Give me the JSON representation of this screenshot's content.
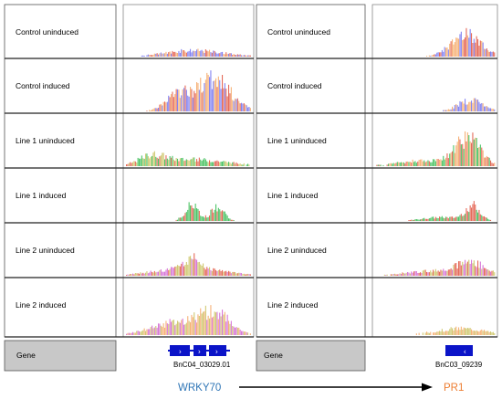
{
  "columns": [
    {
      "tracks": [
        {
          "label": "Control uninduced"
        },
        {
          "label": "Control induced"
        },
        {
          "label": "Line 1 uninduced"
        },
        {
          "label": "Line 1 induced"
        },
        {
          "label": "Line 2 uninduced"
        },
        {
          "label": "Line 2 induced"
        }
      ],
      "gene": {
        "row_label": "Gene",
        "name": "BnC04_03029.01",
        "strand": "forward"
      }
    },
    {
      "tracks": [
        {
          "label": "Control uninduced"
        },
        {
          "label": "Control induced"
        },
        {
          "label": "Line 1 uninduced"
        },
        {
          "label": "Line 1 induced"
        },
        {
          "label": "Line 2 uninduced"
        },
        {
          "label": "Line 2 induced"
        }
      ],
      "gene": {
        "row_label": "Gene",
        "name": "BnC03_09239",
        "strand": "reverse"
      }
    }
  ],
  "bottom": {
    "left_label": "WRKY70",
    "left_color": "#2e75b6",
    "right_label": "PR1",
    "right_color": "#ed7d31",
    "arrow_color": "#000000"
  },
  "colors": {
    "blue": "#6f6ff0",
    "red": "#e0503c",
    "orange": "#f4a460",
    "green": "#2eb84a",
    "olive": "#c8bf5a",
    "magenta": "#d060d0",
    "gene_blue": "#0b14c8"
  }
}
